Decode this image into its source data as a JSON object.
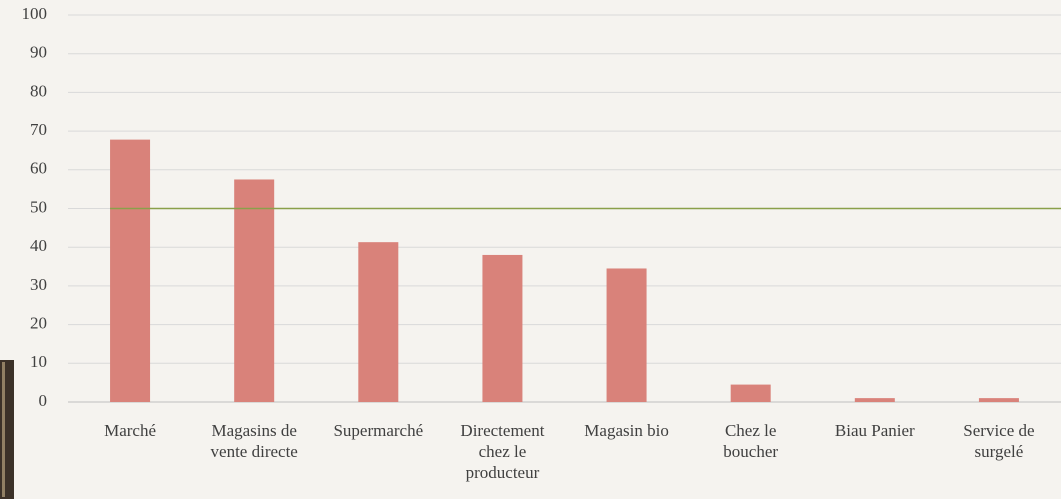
{
  "chart_data": {
    "type": "bar",
    "categories": [
      "Marché",
      "Magasins de vente directe",
      "Supermarché",
      "Directement chez le producteur",
      "Magasin bio",
      "Chez le boucher",
      "Biau Panier",
      "Service de surgelé"
    ],
    "values": [
      67.8,
      57.5,
      41.3,
      38,
      34.5,
      4.5,
      1,
      1
    ],
    "color": "#d9827a",
    "ylim": [
      0,
      100
    ],
    "yticks": [
      0,
      10,
      20,
      30,
      40,
      50,
      60,
      70,
      80,
      90,
      100
    ],
    "grid": true,
    "reference_line": {
      "value": 50,
      "color": "#8aa04a"
    }
  }
}
